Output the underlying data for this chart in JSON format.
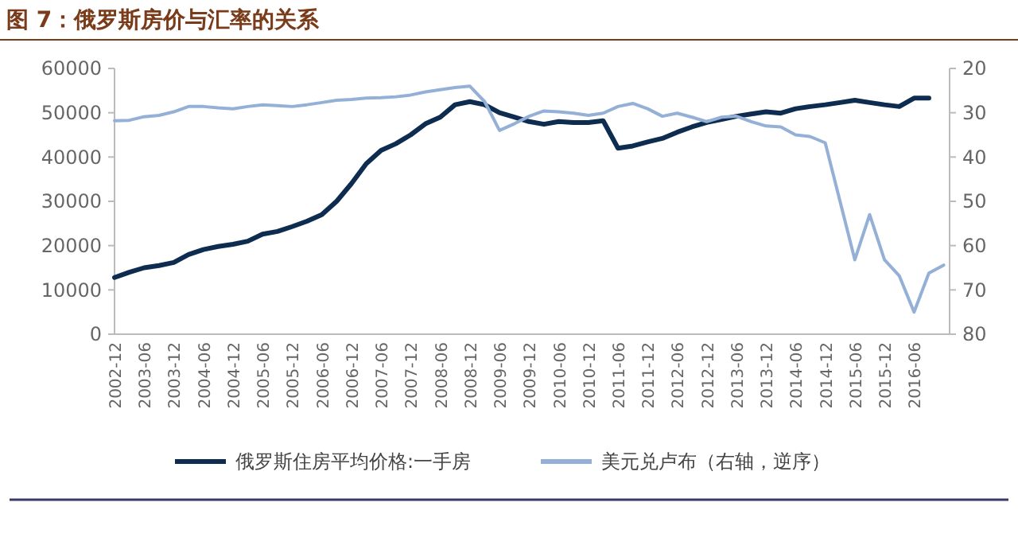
{
  "chart_data": {
    "type": "line",
    "title": "图 7：俄罗斯房价与汇率的关系",
    "categories": [
      "2002-12",
      null,
      "2003-06",
      null,
      "2003-12",
      null,
      "2004-06",
      null,
      "2004-12",
      null,
      "2005-06",
      null,
      "2005-12",
      null,
      "2006-06",
      null,
      "2006-12",
      null,
      "2007-06",
      null,
      "2007-12",
      null,
      "2008-06",
      null,
      "2008-12",
      null,
      "2009-06",
      null,
      "2009-12",
      null,
      "2010-06",
      null,
      "2010-12",
      null,
      "2011-06",
      null,
      "2011-12",
      null,
      "2012-06",
      null,
      "2012-12",
      null,
      "2013-06",
      null,
      "2013-12",
      null,
      "2014-06",
      null,
      "2014-12",
      null,
      "2015-06",
      null,
      "2015-12",
      null,
      "2016-06",
      null,
      null
    ],
    "series": [
      {
        "name": "俄罗斯住房平均价格:一手房",
        "color": "#0d2c4f",
        "values": [
          12800,
          14000,
          15000,
          15500,
          16200,
          18000,
          19100,
          19800,
          20300,
          21000,
          22600,
          23200,
          24300,
          25500,
          27000,
          30000,
          34000,
          38500,
          41500,
          43000,
          45000,
          47500,
          49000,
          51800,
          52500,
          51800,
          50000,
          49000,
          48000,
          47400,
          48000,
          47800,
          47800,
          48200,
          42000,
          42500,
          43400,
          44200,
          45600,
          46800,
          47800,
          48500,
          49200,
          49700,
          50200,
          49900,
          50900,
          51400,
          51800,
          52300,
          52800,
          52300,
          51800,
          51400,
          53300,
          53300,
          null
        ]
      },
      {
        "name": "美元兑卢布（右轴，逆序）",
        "color": "#95b0d6",
        "axis": "y2",
        "values": [
          31.8,
          31.7,
          30.9,
          30.6,
          29.8,
          28.6,
          28.6,
          28.9,
          29.1,
          28.6,
          28.2,
          28.4,
          28.6,
          28.2,
          27.7,
          27.2,
          27.0,
          26.7,
          26.6,
          26.4,
          26.0,
          25.3,
          24.8,
          24.3,
          24.0,
          27.5,
          34.0,
          32.5,
          30.8,
          29.6,
          29.8,
          30.1,
          30.6,
          30.1,
          28.6,
          27.9,
          29.1,
          30.8,
          30.1,
          31.0,
          32.0,
          31.0,
          30.8,
          32.0,
          33.0,
          33.2,
          35.0,
          35.4,
          36.8,
          50.0,
          63.2,
          53.0,
          63.2,
          66.8,
          75.0,
          66.2,
          64.4
        ]
      }
    ],
    "ylim": [
      0,
      60000
    ],
    "yticks": [
      0,
      10000,
      20000,
      30000,
      40000,
      50000,
      60000
    ],
    "y2lim": [
      80,
      20
    ],
    "y2ticks": [
      20,
      30,
      40,
      50,
      60,
      70,
      80
    ],
    "legend": "bottom",
    "grid": false
  }
}
